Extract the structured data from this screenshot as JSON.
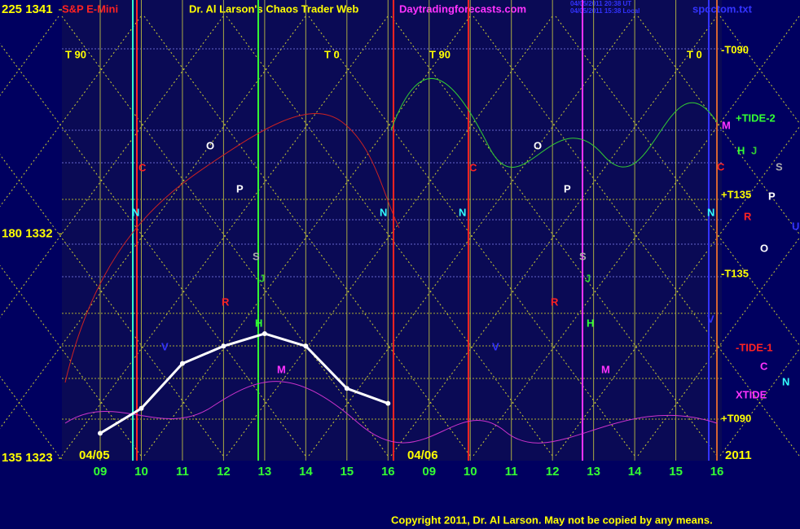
{
  "chart_data": {
    "type": "line",
    "title": "Dr. Al Larson's Chaos Trader Web",
    "subtitle": "S&P E-Mini",
    "source": "Daytradingforecasts.com",
    "timestamps": [
      "04/05/2011 20:38 UT",
      "04/05/2011 15:38 Local"
    ],
    "file": "spcctom.txt",
    "copyright": "Copyright 2011, Dr. Al Larson. May not be copied by any means.",
    "categories": [
      "09",
      "10",
      "11",
      "12",
      "13",
      "14",
      "15",
      "16",
      "09",
      "10",
      "11",
      "12",
      "13",
      "14",
      "15",
      "16"
    ],
    "series": [
      {
        "color": "#ffffff",
        "values": [
          1324.0,
          1325.0,
          1326.8,
          1327.5,
          1328.0,
          1327.5,
          1325.8,
          1325.2,
          null,
          null,
          null,
          null,
          null,
          null,
          null,
          null
        ]
      }
    ],
    "ylim": [
      1323,
      1341
    ],
    "yticks": [
      {
        "value": 1323,
        "label": "135 1323"
      },
      {
        "value": 1332,
        "label": "180 1332"
      },
      {
        "value": 1341,
        "label": "225 1341"
      }
    ],
    "annotations": [
      {
        "text": "T 90",
        "color": "#ffff00"
      },
      {
        "text": "T 0",
        "color": "#ffff00"
      },
      {
        "text": "T 90",
        "color": "#ffff00"
      },
      {
        "text": "T 0",
        "color": "#ffff00"
      },
      {
        "text": "-T090",
        "color": "#ffff00"
      },
      {
        "text": "+TIDE-2",
        "color": "#33ff33"
      },
      {
        "text": "M",
        "color": "#ff33ff"
      },
      {
        "text": "H",
        "color": "#33ff33"
      },
      {
        "text": "J",
        "color": "#33cc33"
      },
      {
        "text": "S",
        "color": "#aaaaaa"
      },
      {
        "text": "C",
        "color": "#ff2222"
      },
      {
        "text": "+T135",
        "color": "#ffff00"
      },
      {
        "text": "P",
        "color": "#ffffff"
      },
      {
        "text": "R",
        "color": "#ff2222"
      },
      {
        "text": "U",
        "color": "#3333ff"
      },
      {
        "text": "O",
        "color": "#ffffff"
      },
      {
        "text": "-T135",
        "color": "#ffff00"
      },
      {
        "text": "V",
        "color": "#3333ff"
      },
      {
        "text": "-TIDE-1",
        "color": "#ff2222"
      },
      {
        "text": "C",
        "color": "#ff33ff"
      },
      {
        "text": "N",
        "color": "#33ffff"
      },
      {
        "text": "XTIDE",
        "color": "#ff33ff"
      },
      {
        "text": "+T090",
        "color": "#ffff00"
      },
      {
        "text": "04/05",
        "color": "#ffff00"
      },
      {
        "text": "04/06",
        "color": "#ffff00"
      },
      {
        "text": "2011",
        "color": "#ffff00"
      },
      {
        "text": "O",
        "color": "#ffffff"
      },
      {
        "text": "C",
        "color": "#ff2222"
      },
      {
        "text": "P",
        "color": "#ffffff"
      },
      {
        "text": "N",
        "color": "#33ffff"
      },
      {
        "text": "S",
        "color": "#aaaaaa"
      },
      {
        "text": "J",
        "color": "#33cc33"
      },
      {
        "text": "R",
        "color": "#ff2222"
      },
      {
        "text": "H",
        "color": "#33ff33"
      },
      {
        "text": "V",
        "color": "#3333ff"
      },
      {
        "text": "M",
        "color": "#ff33ff"
      },
      {
        "text": "O",
        "color": "#ffffff"
      },
      {
        "text": "C",
        "color": "#ff2222"
      },
      {
        "text": "P",
        "color": "#ffffff"
      },
      {
        "text": "N",
        "color": "#33ffff"
      },
      {
        "text": "N",
        "color": "#33ffff"
      },
      {
        "text": "N",
        "color": "#33ffff"
      },
      {
        "text": "S",
        "color": "#aaaaaa"
      },
      {
        "text": "J",
        "color": "#33cc33"
      },
      {
        "text": "R",
        "color": "#ff2222"
      },
      {
        "text": "H",
        "color": "#33ff33"
      },
      {
        "text": "V",
        "color": "#3333ff"
      },
      {
        "text": "M",
        "color": "#ff33ff"
      }
    ]
  }
}
